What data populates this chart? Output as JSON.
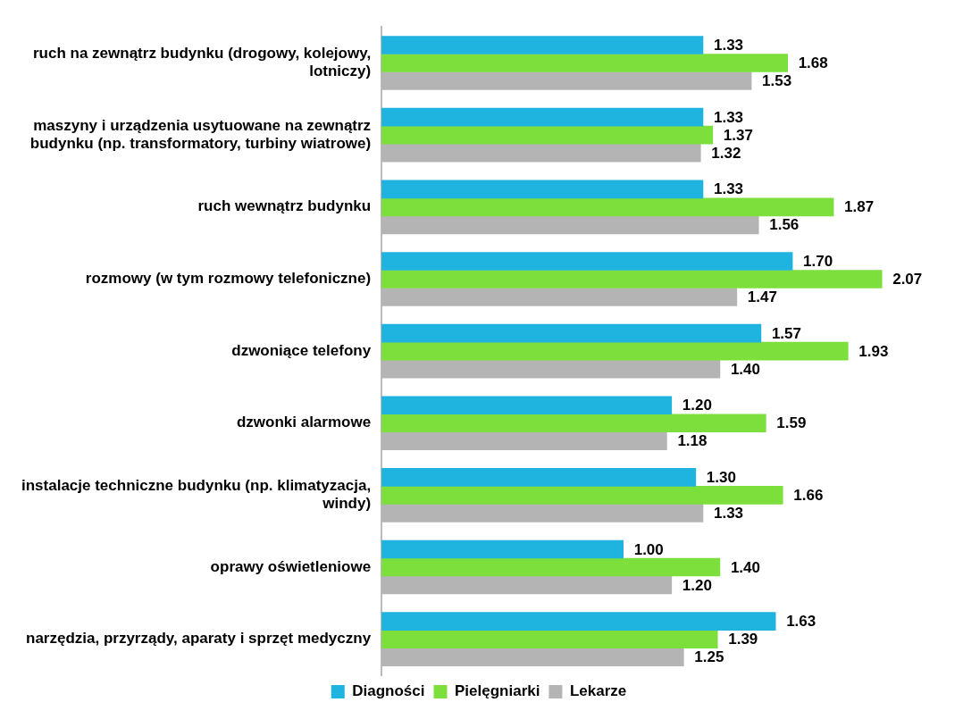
{
  "chart_data": {
    "type": "bar",
    "orientation": "horizontal",
    "legend": "bottom",
    "categories": [
      "ruch na zewnątrz budynku (drogowy, kolejowy, lotniczy)",
      "maszyny i urządzenia usytuowane na zewnątrz budynku (np. transformatory, turbiny wiatrowe)",
      "ruch wewnątrz budynku",
      "rozmowy (w tym rozmowy telefoniczne)",
      "dzwoniące telefony",
      "dzwonki alarmowe",
      "instalacje techniczne budynku (np. klimatyzacja, windy)",
      "oprawy oświetleniowe",
      "narzędzia, przyrządy, aparaty i sprzęt medyczny"
    ],
    "series": [
      {
        "name": "Diagności",
        "color": "#1fb3e0",
        "values": [
          1.33,
          1.33,
          1.33,
          1.7,
          1.57,
          1.2,
          1.3,
          1.0,
          1.63
        ],
        "value_labels": [
          "1.33",
          "1.33",
          "1.33",
          "1.70",
          "1.57",
          "1.20",
          "1.30",
          "1.00",
          "1.63"
        ]
      },
      {
        "name": "Pielęgniarki",
        "color": "#7ddf3c",
        "values": [
          1.68,
          1.37,
          1.87,
          2.07,
          1.93,
          1.59,
          1.66,
          1.4,
          1.39
        ],
        "value_labels": [
          "1.68",
          "1.37",
          "1.87",
          "2.07",
          "1.93",
          "1.59",
          "1.66",
          "1.40",
          "1.39"
        ]
      },
      {
        "name": "Lekarze",
        "color": "#b4b4b4",
        "values": [
          1.53,
          1.32,
          1.56,
          1.47,
          1.4,
          1.18,
          1.33,
          1.2,
          1.25
        ],
        "value_labels": [
          "1.53",
          "1.32",
          "1.56",
          "1.47",
          "1.40",
          "1.18",
          "1.33",
          "1.20",
          "1.25"
        ]
      }
    ]
  }
}
